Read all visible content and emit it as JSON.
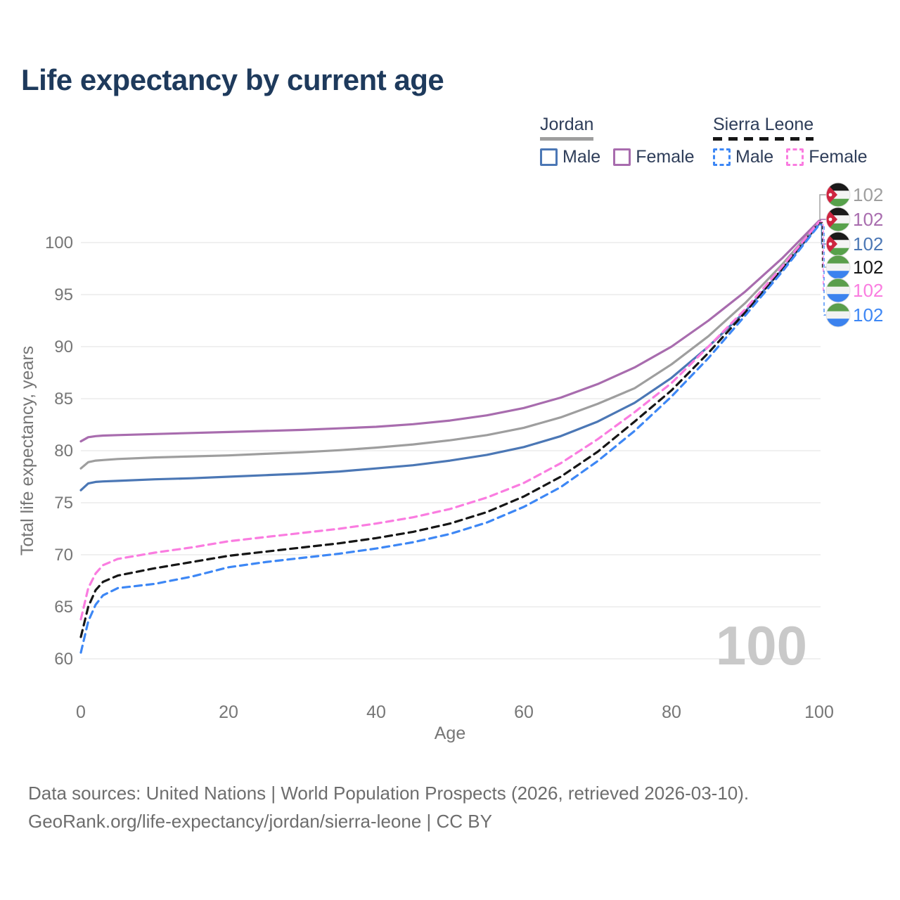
{
  "title": "Life expectancy by current age",
  "legend": {
    "groups": [
      {
        "name": "Jordan",
        "line_style": "solid",
        "line_color": "#9e9e9e",
        "items": [
          {
            "label": "Male",
            "color": "#4b77b5",
            "dashed": false
          },
          {
            "label": "Female",
            "color": "#a86cae",
            "dashed": false
          }
        ]
      },
      {
        "name": "Sierra Leone",
        "line_style": "dashed",
        "line_color": "#161616",
        "items": [
          {
            "label": "Male",
            "color": "#3d87f5",
            "dashed": true
          },
          {
            "label": "Female",
            "color": "#fa7ce0",
            "dashed": true
          }
        ]
      }
    ]
  },
  "watermark_age": "100",
  "footer": {
    "line1": "Data sources: United Nations | World Population Prospects (2026, retrieved 2026-03-10).",
    "line2": "GeoRank.org/life-expectancy/jordan/sierra-leone | CC BY"
  },
  "colors": {
    "grid": "#ececec",
    "axis_text": "#767676",
    "watermark": "#c9c9c9",
    "title_text": "#1e3a5c",
    "legend_text": "#2e3d59"
  },
  "chart_data": {
    "type": "line",
    "title": "Life expectancy by current age",
    "xlabel": "Age",
    "ylabel": "Total life expectancy, years",
    "x_ticks": [
      0,
      20,
      40,
      60,
      80,
      100
    ],
    "y_ticks": [
      60,
      65,
      70,
      75,
      80,
      85,
      90,
      95,
      100
    ],
    "xlim": [
      0,
      100
    ],
    "ylim": [
      58.5,
      103
    ],
    "grid": "horizontal",
    "legend_position": "top-right",
    "hovered_age": 100,
    "ages": [
      0,
      1,
      2,
      3,
      5,
      10,
      15,
      20,
      25,
      30,
      35,
      40,
      45,
      50,
      55,
      60,
      65,
      70,
      75,
      80,
      85,
      90,
      95,
      100
    ],
    "series": [
      {
        "name": "Jordan - Both sexes",
        "country": "Jordan",
        "sex": "Both",
        "color": "#9e9e9e",
        "dashed": false,
        "end_label": "102",
        "values": [
          78.3,
          78.9,
          79.05,
          79.1,
          79.2,
          79.35,
          79.45,
          79.55,
          79.7,
          79.85,
          80.05,
          80.3,
          80.6,
          81.0,
          81.5,
          82.2,
          83.2,
          84.5,
          86.0,
          88.3,
          91.0,
          94.2,
          97.9,
          102.0
        ]
      },
      {
        "name": "Jordan - Female",
        "country": "Jordan",
        "sex": "Female",
        "color": "#a86cae",
        "dashed": false,
        "end_label": "102",
        "values": [
          80.9,
          81.3,
          81.4,
          81.45,
          81.5,
          81.6,
          81.7,
          81.8,
          81.9,
          82.0,
          82.15,
          82.3,
          82.55,
          82.9,
          83.4,
          84.1,
          85.1,
          86.4,
          88.0,
          90.0,
          92.5,
          95.3,
          98.5,
          102.1
        ]
      },
      {
        "name": "Jordan - Male",
        "country": "Jordan",
        "sex": "Male",
        "color": "#4b77b5",
        "dashed": false,
        "end_label": "102",
        "values": [
          76.2,
          76.85,
          77.0,
          77.05,
          77.1,
          77.25,
          77.35,
          77.5,
          77.65,
          77.8,
          78.0,
          78.3,
          78.6,
          79.05,
          79.6,
          80.35,
          81.4,
          82.8,
          84.6,
          87.0,
          90.0,
          93.4,
          97.4,
          101.8
        ]
      },
      {
        "name": "Sierra Leone - Both sexes",
        "country": "Sierra Leone",
        "sex": "Both",
        "color": "#161616",
        "dashed": true,
        "end_label": "102",
        "values": [
          62.1,
          65.0,
          66.6,
          67.4,
          68.0,
          68.7,
          69.3,
          69.9,
          70.3,
          70.7,
          71.1,
          71.6,
          72.2,
          73.0,
          74.1,
          75.6,
          77.5,
          79.9,
          82.8,
          85.8,
          89.4,
          93.3,
          97.5,
          101.9
        ]
      },
      {
        "name": "Sierra Leone - Female",
        "country": "Sierra Leone",
        "sex": "Female",
        "color": "#fa7ce0",
        "dashed": true,
        "end_label": "102",
        "values": [
          63.8,
          66.8,
          68.2,
          69.0,
          69.6,
          70.2,
          70.7,
          71.3,
          71.7,
          72.1,
          72.5,
          73.0,
          73.6,
          74.4,
          75.5,
          76.9,
          78.8,
          81.1,
          83.7,
          86.5,
          90.0,
          93.6,
          97.7,
          102.0
        ]
      },
      {
        "name": "Sierra Leone - Male",
        "country": "Sierra Leone",
        "sex": "Male",
        "color": "#3d87f5",
        "dashed": true,
        "end_label": "102",
        "values": [
          60.6,
          63.6,
          65.2,
          66.1,
          66.8,
          67.2,
          67.9,
          68.8,
          69.3,
          69.7,
          70.1,
          70.6,
          71.2,
          72.0,
          73.1,
          74.6,
          76.5,
          79.0,
          81.9,
          85.2,
          88.9,
          93.0,
          97.2,
          101.7
        ]
      }
    ]
  }
}
